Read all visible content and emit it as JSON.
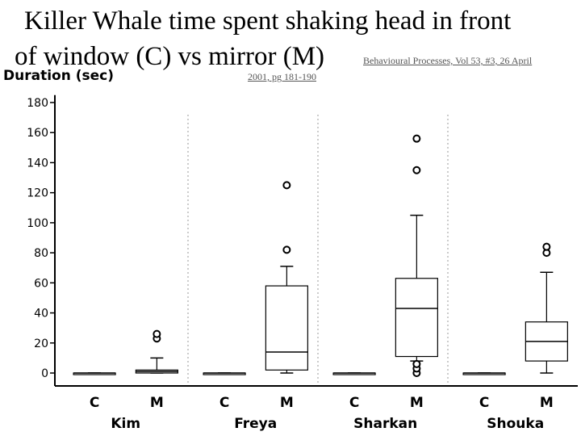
{
  "header": {
    "title_line1": "Killer Whale time spent shaking head in front",
    "title_line2": "of window (C) vs mirror (M)",
    "citation_line1": "Behavioural Processes, Vol 53, #3, 26 April",
    "citation_line2": "2001, pg 181-190"
  },
  "chart_data": {
    "type": "box",
    "ylabel": "Duration (sec)",
    "xlabel": "",
    "ylim": [
      0,
      185
    ],
    "yticks": [
      0,
      20,
      40,
      60,
      80,
      100,
      120,
      140,
      160,
      180
    ],
    "grid": false,
    "groups": [
      {
        "name": "Kim",
        "boxes": [
          {
            "label": "C",
            "min": 0,
            "q1": 0,
            "median": 0,
            "q3": 0,
            "max": 0,
            "outliers": []
          },
          {
            "label": "M",
            "min": 0,
            "q1": 0,
            "median": 1,
            "q3": 2,
            "max": 10,
            "outliers": [
              23,
              26
            ]
          }
        ]
      },
      {
        "name": "Freya",
        "boxes": [
          {
            "label": "C",
            "min": 0,
            "q1": 0,
            "median": 0,
            "q3": 0,
            "max": 0,
            "outliers": []
          },
          {
            "label": "M",
            "min": 0,
            "q1": 2,
            "median": 14,
            "q3": 58,
            "max": 71,
            "outliers": [
              82,
              125
            ]
          }
        ]
      },
      {
        "name": "Sharkan",
        "boxes": [
          {
            "label": "C",
            "min": 0,
            "q1": 0,
            "median": 0,
            "q3": 0,
            "max": 0,
            "outliers": []
          },
          {
            "label": "M",
            "min": 8,
            "q1": 11,
            "median": 43,
            "q3": 63,
            "max": 105,
            "outliers": [
              0,
              3,
              6,
              135,
              156
            ]
          }
        ]
      },
      {
        "name": "Shouka",
        "boxes": [
          {
            "label": "C",
            "min": 0,
            "q1": 0,
            "median": 0,
            "q3": 0,
            "max": 0,
            "outliers": []
          },
          {
            "label": "M",
            "min": 0,
            "q1": 8,
            "median": 21,
            "q3": 34,
            "max": 67,
            "outliers": [
              80,
              84
            ]
          }
        ]
      }
    ]
  }
}
